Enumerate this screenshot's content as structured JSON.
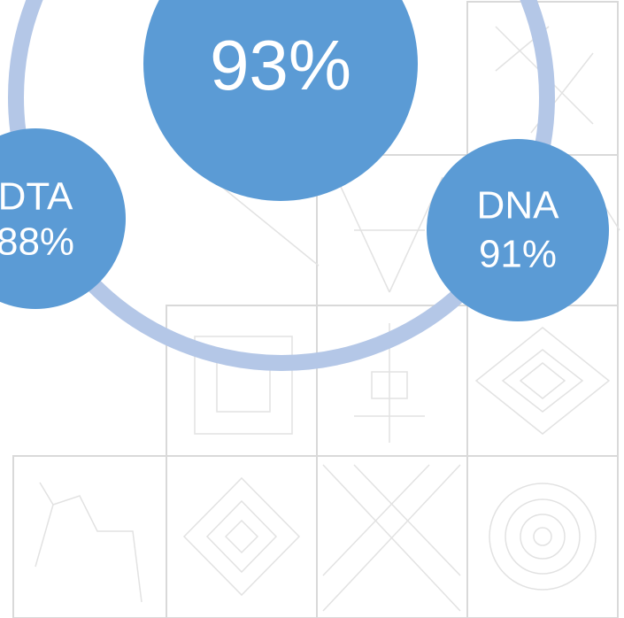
{
  "main": {
    "label": "93%"
  },
  "left": {
    "name": "DTA",
    "label": "88%"
  },
  "right": {
    "name": "DNA",
    "label": "91%"
  }
}
